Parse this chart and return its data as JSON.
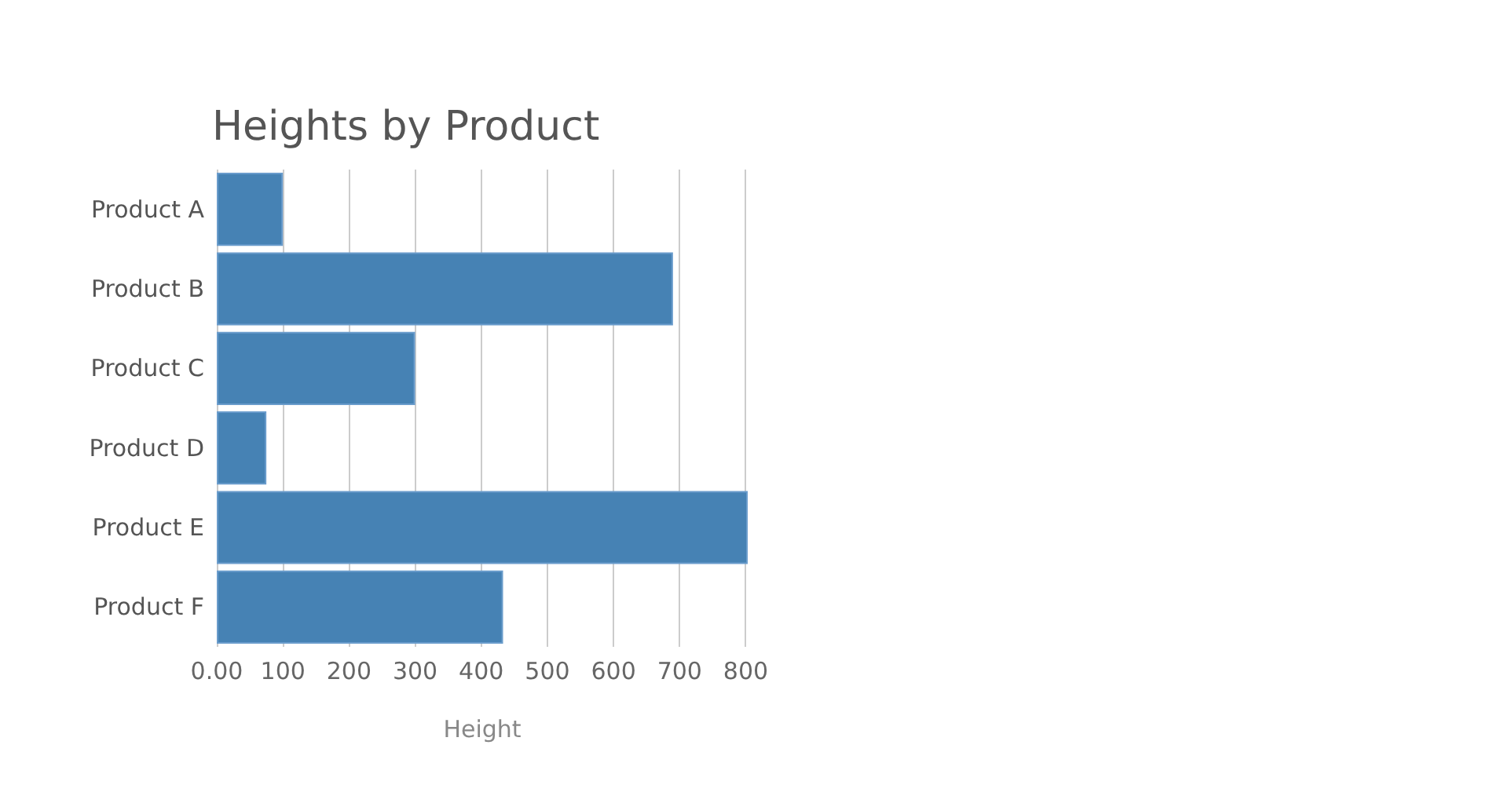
{
  "chart_data": {
    "type": "bar",
    "orientation": "horizontal",
    "title": "Heights by Product",
    "xlabel": "Height",
    "categories": [
      "Product A",
      "Product B",
      "Product C",
      "Product D",
      "Product E",
      "Product F"
    ],
    "values": [
      100,
      690,
      300,
      75,
      803,
      433
    ],
    "color": "#4682b4",
    "xlim": [
      0,
      803
    ],
    "xticks": [
      {
        "value": 0,
        "label": "0.00"
      },
      100,
      200,
      300,
      400,
      500,
      600,
      700,
      800
    ],
    "grid": "x"
  }
}
